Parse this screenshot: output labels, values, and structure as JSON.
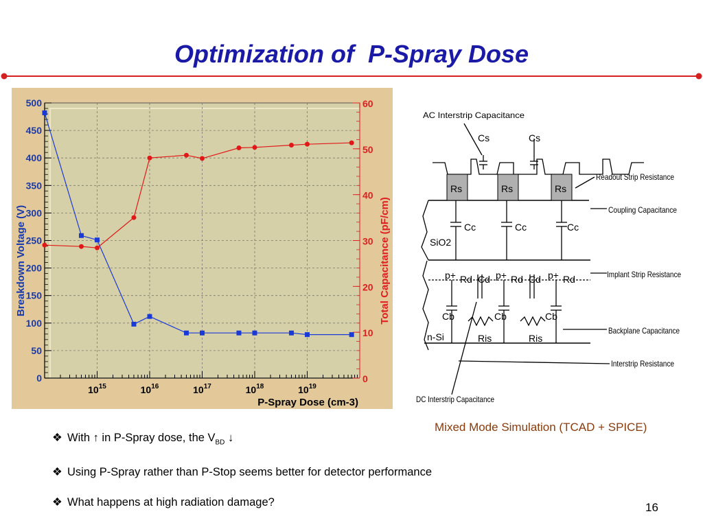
{
  "slide": {
    "title": "Optimization of  P-Spray Dose",
    "caption": "Mixed Mode Simulation (TCAD + SPICE)",
    "page_number": "16",
    "bullets": [
      {
        "symbol": "❖",
        "text_before": "With ↑ in P-Spray dose, the V",
        "sub": "BD",
        "text_after": " ↓"
      },
      {
        "symbol": "❖",
        "text": "Using P-Spray rather than P-Stop seems better for detector performance"
      },
      {
        "symbol": "❖",
        "text": "What happens at high radiation damage?"
      }
    ]
  },
  "chart_data": {
    "type": "line",
    "xlabel": "P-Spray Dose (cm-3)",
    "ylabel": "Breakdown Voltage (V)",
    "y2label": "Total Capacitance (pF/cm)",
    "xscale": "log",
    "xlim": [
      100000000000000.0,
      1e+20
    ],
    "ylim": [
      0,
      500
    ],
    "y2lim": [
      0,
      60
    ],
    "grid": true,
    "x_ticks": [
      1000000000000000.0,
      1e+16,
      1e+17,
      1e+18,
      1e+19
    ],
    "x_tick_labels": [
      {
        "base": "10",
        "exp": "15"
      },
      {
        "base": "10",
        "exp": "16"
      },
      {
        "base": "10",
        "exp": "17"
      },
      {
        "base": "10",
        "exp": "18"
      },
      {
        "base": "10",
        "exp": "19"
      }
    ],
    "y_ticks": [
      "0",
      "50",
      "100",
      "150",
      "200",
      "250",
      "300",
      "350",
      "400",
      "450",
      "500"
    ],
    "y2_ticks": [
      "0",
      "10",
      "20",
      "30",
      "40",
      "50",
      "60"
    ],
    "colors": {
      "left_axis": "#1a3aa8",
      "right_axis": "#e02020",
      "plot_bg": "#d6d0a8",
      "frame_bg": "#e3c89a"
    },
    "series": [
      {
        "axis": "left",
        "color": "#1a3ad8",
        "marker": "square",
        "x": [
          100000000000000.0,
          500000000000000.0,
          1000000000000000.0,
          5000000000000000.0,
          1e+16,
          5e+16,
          1e+17,
          5e+17,
          1e+18,
          5e+18,
          1e+19,
          7e+19
        ],
        "y": [
          482,
          259,
          251,
          98,
          112,
          82,
          82,
          82,
          82,
          82,
          79,
          79
        ]
      },
      {
        "axis": "right",
        "color": "#e01818",
        "marker": "circle",
        "x": [
          100000000000000.0,
          500000000000000.0,
          1000000000000000.0,
          5000000000000000.0,
          1e+16,
          5e+16,
          1e+17,
          5e+17,
          1e+18,
          5e+18,
          1e+19,
          7e+19
        ],
        "y": [
          29.0,
          28.7,
          28.4,
          35.0,
          48.0,
          48.6,
          47.9,
          50.2,
          50.3,
          50.8,
          51.0,
          51.3
        ]
      }
    ]
  },
  "diagram": {
    "labels": {
      "ac_interstrip": "AC Interstrip Capacitance",
      "readout_resistance": "Readout Strip Resistance",
      "coupling": "Coupling Capacitance",
      "implant_resistance": "Implant Strip Resistance",
      "backplane": "Backplane Capacitance",
      "interstrip_res": "Interstrip Resistance",
      "dc_interstrip": "DC Interstrip Capacitance"
    },
    "components": {
      "cs": "Cs",
      "rs": "Rs",
      "cc": "Cc",
      "sio2": "SiO2",
      "pplus": "p+",
      "rd": "Rd",
      "cd": "Cd",
      "cb": "Cb",
      "ris": "Ris",
      "nsi": "n-Si"
    }
  }
}
